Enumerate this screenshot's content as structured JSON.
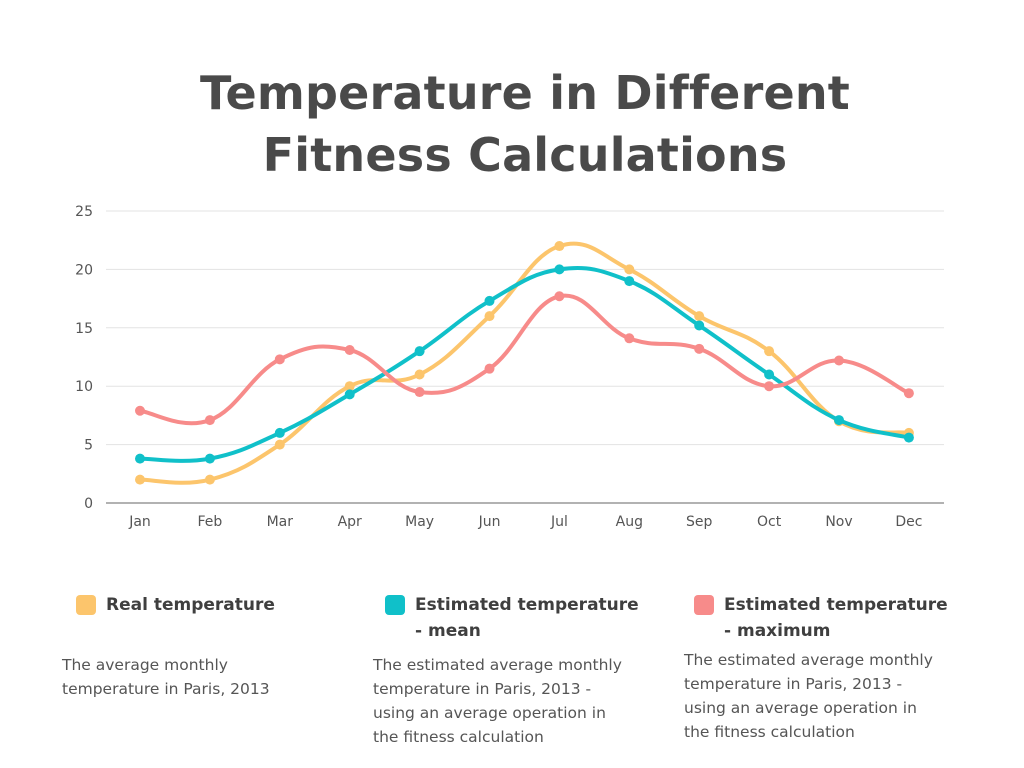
{
  "title": {
    "line1": "Temperature in Different",
    "line2": "Fitness Calculations"
  },
  "colors": {
    "real": "#fcc56c",
    "mean": "#10c0c9",
    "maximum": "#f78b8a",
    "grid": "#e3e3e3",
    "axis": "#666666",
    "text": "#555555"
  },
  "legend": [
    {
      "label_line1": "Real temperature",
      "label_line2": "",
      "color": "#fcc56c",
      "desc_lines": [
        "The average monthly",
        "temperature in Paris, 2013"
      ]
    },
    {
      "label_line1": "Estimated temperature",
      "label_line2": "- mean",
      "color": "#10c0c9",
      "desc_lines": [
        "The estimated average monthly",
        "temperature in Paris, 2013 -",
        "using an average operation in",
        "the fitness calculation"
      ]
    },
    {
      "label_line1": "Estimated temperature",
      "label_line2": "- maximum",
      "color": "#f78b8a",
      "desc_lines": [
        "The estimated average monthly",
        "temperature in Paris, 2013 -",
        "using an average operation in",
        "the fitness calculation"
      ]
    }
  ],
  "chart_data": {
    "type": "line",
    "title": "Temperature in Different Fitness Calculations",
    "xlabel": "",
    "ylabel": "",
    "categories": [
      "Jan",
      "Feb",
      "Mar",
      "Apr",
      "May",
      "Jun",
      "Jul",
      "Aug",
      "Sep",
      "Oct",
      "Nov",
      "Dec"
    ],
    "ylim": [
      0,
      25
    ],
    "yticks": [
      0,
      5,
      10,
      15,
      20,
      25
    ],
    "grid": true,
    "smooth": true,
    "legend_position": "bottom",
    "series": [
      {
        "name": "Real temperature",
        "color": "#fcc56c",
        "values": [
          2,
          2,
          5,
          10,
          11,
          16,
          22,
          20,
          16,
          13,
          7,
          6
        ]
      },
      {
        "name": "Estimated temperature - mean",
        "color": "#10c0c9",
        "values": [
          3.8,
          3.8,
          6,
          9.3,
          13,
          17.3,
          20,
          19,
          15.2,
          11,
          7.1,
          5.6
        ]
      },
      {
        "name": "Estimated temperature - maximum",
        "color": "#f78b8a",
        "values": [
          7.9,
          7.1,
          12.3,
          13.1,
          9.5,
          11.5,
          17.7,
          14.1,
          13.2,
          10,
          12.2,
          9.4
        ]
      }
    ]
  }
}
